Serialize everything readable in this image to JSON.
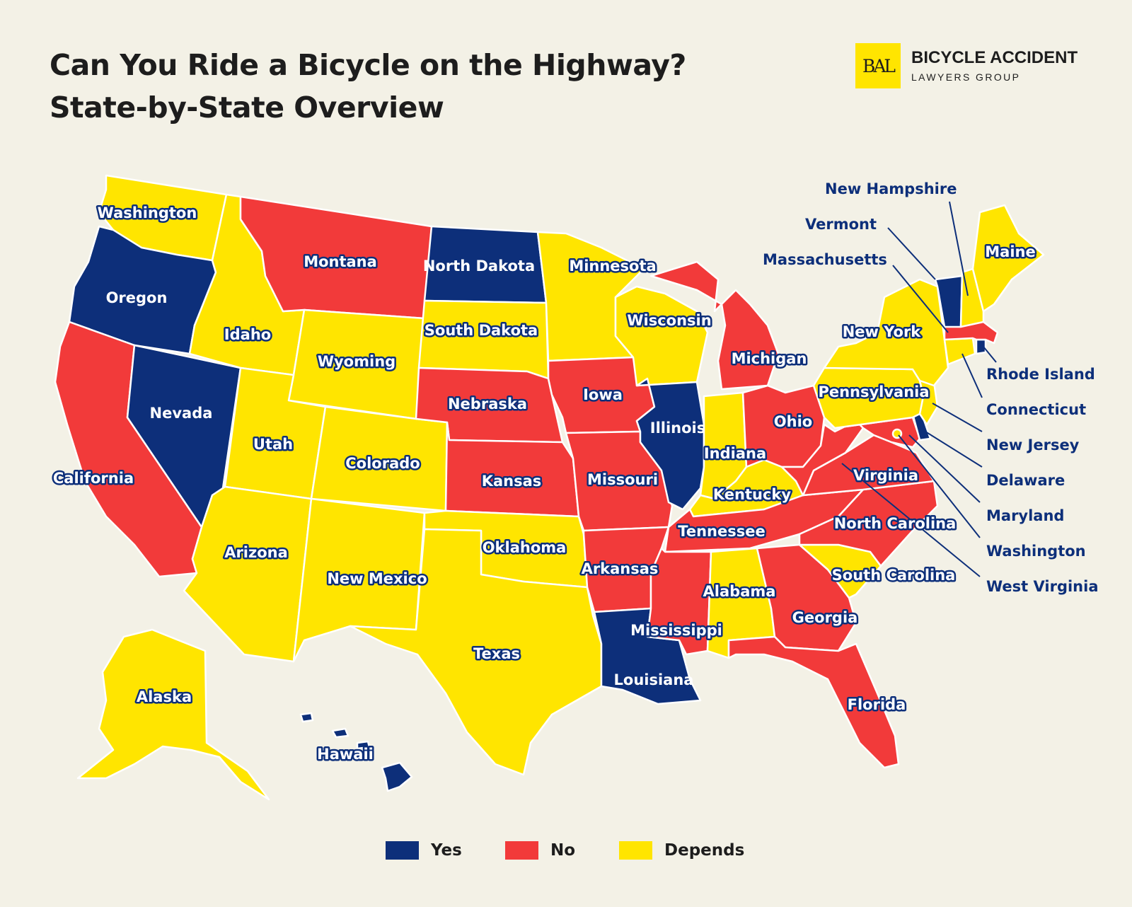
{
  "title": {
    "line1": "Can You Ride a Bicycle on the Highway?",
    "line2": "State-by-State Overview"
  },
  "logo": {
    "mark": "BAL",
    "name": "BICYCLE ACCIDENT",
    "subtitle": "LAWYERS GROUP"
  },
  "colors": {
    "yes": "#0D2F7A",
    "no": "#F23A3A",
    "depends": "#FFE500",
    "background": "#F3F1E6"
  },
  "legend": [
    {
      "key": "yes",
      "label": "Yes"
    },
    {
      "key": "no",
      "label": "No"
    },
    {
      "key": "depends",
      "label": "Depends"
    }
  ],
  "states": {
    "WA": {
      "name": "Washington",
      "status": "depends"
    },
    "OR": {
      "name": "Oregon",
      "status": "yes"
    },
    "CA": {
      "name": "California",
      "status": "no"
    },
    "NV": {
      "name": "Nevada",
      "status": "yes"
    },
    "ID": {
      "name": "Idaho",
      "status": "depends"
    },
    "MT": {
      "name": "Montana",
      "status": "no"
    },
    "WY": {
      "name": "Wyoming",
      "status": "depends"
    },
    "UT": {
      "name": "Utah",
      "status": "depends"
    },
    "AZ": {
      "name": "Arizona",
      "status": "depends"
    },
    "CO": {
      "name": "Colorado",
      "status": "depends"
    },
    "NM": {
      "name": "New Mexico",
      "status": "depends"
    },
    "ND": {
      "name": "North Dakota",
      "status": "yes"
    },
    "SD": {
      "name": "South Dakota",
      "status": "depends"
    },
    "NE": {
      "name": "Nebraska",
      "status": "no"
    },
    "KS": {
      "name": "Kansas",
      "status": "no"
    },
    "OK": {
      "name": "Oklahoma",
      "status": "depends"
    },
    "TX": {
      "name": "Texas",
      "status": "depends"
    },
    "MN": {
      "name": "Minnesota",
      "status": "depends"
    },
    "IA": {
      "name": "Iowa",
      "status": "no"
    },
    "MO": {
      "name": "Missouri",
      "status": "no"
    },
    "AR": {
      "name": "Arkansas",
      "status": "no"
    },
    "LA": {
      "name": "Louisiana",
      "status": "yes"
    },
    "WI": {
      "name": "Wisconsin",
      "status": "depends"
    },
    "IL": {
      "name": "Illinois",
      "status": "yes"
    },
    "MI": {
      "name": "Michigan",
      "status": "no"
    },
    "IN": {
      "name": "Indiana",
      "status": "depends"
    },
    "OH": {
      "name": "Ohio",
      "status": "no"
    },
    "KY": {
      "name": "Kentucky",
      "status": "depends"
    },
    "TN": {
      "name": "Tennessee",
      "status": "no"
    },
    "MS": {
      "name": "Mississippi",
      "status": "no"
    },
    "AL": {
      "name": "Alabama",
      "status": "depends"
    },
    "GA": {
      "name": "Georgia",
      "status": "no"
    },
    "FL": {
      "name": "Florida",
      "status": "no"
    },
    "SC": {
      "name": "South Carolina",
      "status": "depends"
    },
    "NC": {
      "name": "North Carolina",
      "status": "no"
    },
    "VA": {
      "name": "Virginia",
      "status": "no"
    },
    "WV": {
      "name": "West Virginia",
      "status": "no"
    },
    "MD": {
      "name": "Maryland",
      "status": "no"
    },
    "DE": {
      "name": "Delaware",
      "status": "yes"
    },
    "NJ": {
      "name": "New Jersey",
      "status": "depends"
    },
    "PA": {
      "name": "Pennsylvania",
      "status": "depends"
    },
    "NY": {
      "name": "New York",
      "status": "depends"
    },
    "CT": {
      "name": "Connecticut",
      "status": "depends"
    },
    "RI": {
      "name": "Rhode Island",
      "status": "yes"
    },
    "MA": {
      "name": "Massachusetts",
      "status": "no"
    },
    "VT": {
      "name": "Vermont",
      "status": "yes"
    },
    "NH": {
      "name": "New Hampshire",
      "status": "depends"
    },
    "ME": {
      "name": "Maine",
      "status": "depends"
    },
    "AK": {
      "name": "Alaska",
      "status": "depends"
    },
    "HI": {
      "name": "Hawaii",
      "status": "yes"
    },
    "DC": {
      "name": "Washington",
      "status": "depends"
    }
  }
}
